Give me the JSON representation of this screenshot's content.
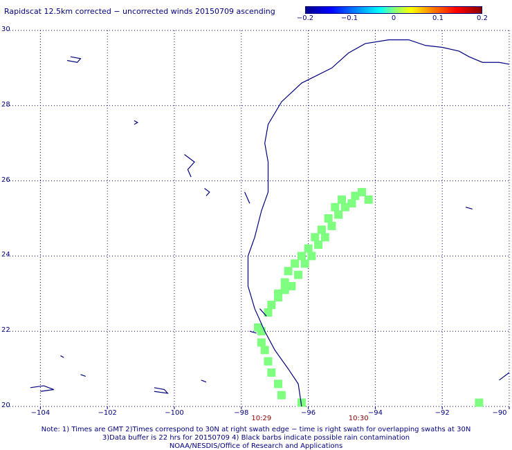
{
  "title": "Rapidscat 12.5km corrected − uncorrected winds 20150709 ascending",
  "colorbar": {
    "ticks": [
      "−0.2",
      "−0.1",
      "0",
      "0.1",
      "0.2"
    ],
    "values": [
      -0.2,
      -0.1,
      0,
      0.1,
      0.2
    ],
    "range": [
      -0.2,
      0.2
    ]
  },
  "map": {
    "lon_range": [
      -105,
      -90
    ],
    "lat_range": [
      20,
      30
    ],
    "lat_ticks": [
      30,
      28,
      26,
      24,
      22,
      20
    ],
    "lat_labels": [
      "30",
      "28",
      "26",
      "24",
      "22",
      "20"
    ],
    "lon_ticks": [
      -104,
      -102,
      -100,
      -98,
      -96,
      -94,
      -92,
      -90
    ],
    "lon_labels": [
      "−104",
      "−102",
      "−100",
      "−98",
      "−96",
      "−94",
      "−92",
      "−90"
    ],
    "coast_color": "#000080",
    "grid_color": "#000080",
    "swath_color": "#7fff7f",
    "swath_value": 0,
    "coastline": [
      [
        -96.2,
        20.0
      ],
      [
        -96.3,
        20.6
      ],
      [
        -96.6,
        21.0
      ],
      [
        -97.0,
        21.5
      ],
      [
        -97.3,
        22.0
      ],
      [
        -97.6,
        22.6
      ],
      [
        -97.8,
        23.2
      ],
      [
        -97.8,
        24.0
      ],
      [
        -97.6,
        24.5
      ],
      [
        -97.4,
        25.2
      ],
      [
        -97.2,
        25.7
      ],
      [
        -97.2,
        26.5
      ],
      [
        -97.3,
        27.0
      ],
      [
        -97.2,
        27.5
      ],
      [
        -96.8,
        28.1
      ],
      [
        -96.2,
        28.6
      ],
      [
        -95.3,
        29.0
      ],
      [
        -94.8,
        29.4
      ],
      [
        -94.3,
        29.65
      ],
      [
        -93.6,
        29.75
      ],
      [
        -93.0,
        29.75
      ],
      [
        -92.5,
        29.6
      ],
      [
        -92.0,
        29.55
      ],
      [
        -91.5,
        29.45
      ],
      [
        -91.2,
        29.3
      ],
      [
        -90.8,
        29.15
      ],
      [
        -90.3,
        29.15
      ],
      [
        -90.0,
        29.1
      ]
    ],
    "islands": [
      [
        [
          -104.3,
          20.5
        ],
        [
          -103.9,
          20.55
        ],
        [
          -103.6,
          20.45
        ],
        [
          -104.0,
          20.4
        ]
      ],
      [
        [
          -103.1,
          29.3
        ],
        [
          -102.8,
          29.25
        ],
        [
          -102.9,
          29.15
        ],
        [
          -103.2,
          29.2
        ]
      ],
      [
        [
          -100.6,
          20.5
        ],
        [
          -100.3,
          20.45
        ],
        [
          -100.2,
          20.35
        ],
        [
          -100.6,
          20.4
        ]
      ],
      [
        [
          -101.2,
          27.6
        ],
        [
          -101.1,
          27.55
        ],
        [
          -101.2,
          27.5
        ]
      ],
      [
        [
          -99.7,
          26.7
        ],
        [
          -99.4,
          26.5
        ],
        [
          -99.6,
          26.3
        ],
        [
          -99.5,
          26.1
        ]
      ],
      [
        [
          -99.1,
          25.8
        ],
        [
          -98.95,
          25.7
        ],
        [
          -99.05,
          25.6
        ]
      ],
      [
        [
          -103.4,
          21.35
        ],
        [
          -103.3,
          21.3
        ]
      ],
      [
        [
          -102.8,
          20.85
        ],
        [
          -102.65,
          20.8
        ]
      ],
      [
        [
          -99.2,
          20.7
        ],
        [
          -99.05,
          20.65
        ]
      ],
      [
        [
          -91.3,
          25.3
        ],
        [
          -91.1,
          25.25
        ]
      ],
      [
        [
          -97.9,
          25.7
        ],
        [
          -97.75,
          25.4
        ]
      ],
      [
        [
          -97.45,
          22.6
        ],
        [
          -97.25,
          22.4
        ]
      ],
      [
        [
          -97.75,
          22.0
        ],
        [
          -97.55,
          21.95
        ]
      ],
      [
        [
          -90.3,
          20.7
        ],
        [
          -90.0,
          20.9
        ]
      ]
    ],
    "swath_cells": [
      [
        -97.5,
        22.1
      ],
      [
        -97.4,
        22.0
      ],
      [
        -97.4,
        21.7
      ],
      [
        -97.3,
        21.5
      ],
      [
        -97.2,
        21.2
      ],
      [
        -97.1,
        20.9
      ],
      [
        -96.9,
        20.6
      ],
      [
        -96.8,
        20.3
      ],
      [
        -96.2,
        20.1
      ],
      [
        -97.2,
        22.5
      ],
      [
        -97.1,
        22.7
      ],
      [
        -96.9,
        23.0
      ],
      [
        -96.7,
        23.3
      ],
      [
        -96.6,
        23.6
      ],
      [
        -96.4,
        23.8
      ],
      [
        -96.2,
        24.0
      ],
      [
        -96.0,
        24.2
      ],
      [
        -95.8,
        24.5
      ],
      [
        -95.6,
        24.7
      ],
      [
        -95.4,
        25.0
      ],
      [
        -95.2,
        25.3
      ],
      [
        -95.0,
        25.5
      ],
      [
        -94.6,
        25.6
      ],
      [
        -94.4,
        25.7
      ],
      [
        -96.9,
        22.9
      ],
      [
        -96.7,
        23.1
      ],
      [
        -96.5,
        23.2
      ],
      [
        -96.3,
        23.5
      ],
      [
        -96.1,
        23.8
      ],
      [
        -95.9,
        24.0
      ],
      [
        -95.7,
        24.3
      ],
      [
        -95.5,
        24.5
      ],
      [
        -95.3,
        24.8
      ],
      [
        -95.1,
        25.1
      ],
      [
        -94.9,
        25.3
      ],
      [
        -94.7,
        25.4
      ],
      [
        -94.2,
        25.5
      ],
      [
        -90.9,
        20.1
      ]
    ]
  },
  "times": [
    {
      "label": "10:29",
      "lon": -97.4
    },
    {
      "label": "10:30",
      "lon": -94.5
    }
  ],
  "notes": [
    "Note: 1) Times are GMT 2)Times correspond to 30N at right swath edge − time is right swath for overlapping swaths at 30N",
    "3)Data buffer is 22 hrs for 20150709 4) Black barbs indicate possible rain contamination",
    "NOAA/NESDIS/Office of Research and Applications"
  ]
}
